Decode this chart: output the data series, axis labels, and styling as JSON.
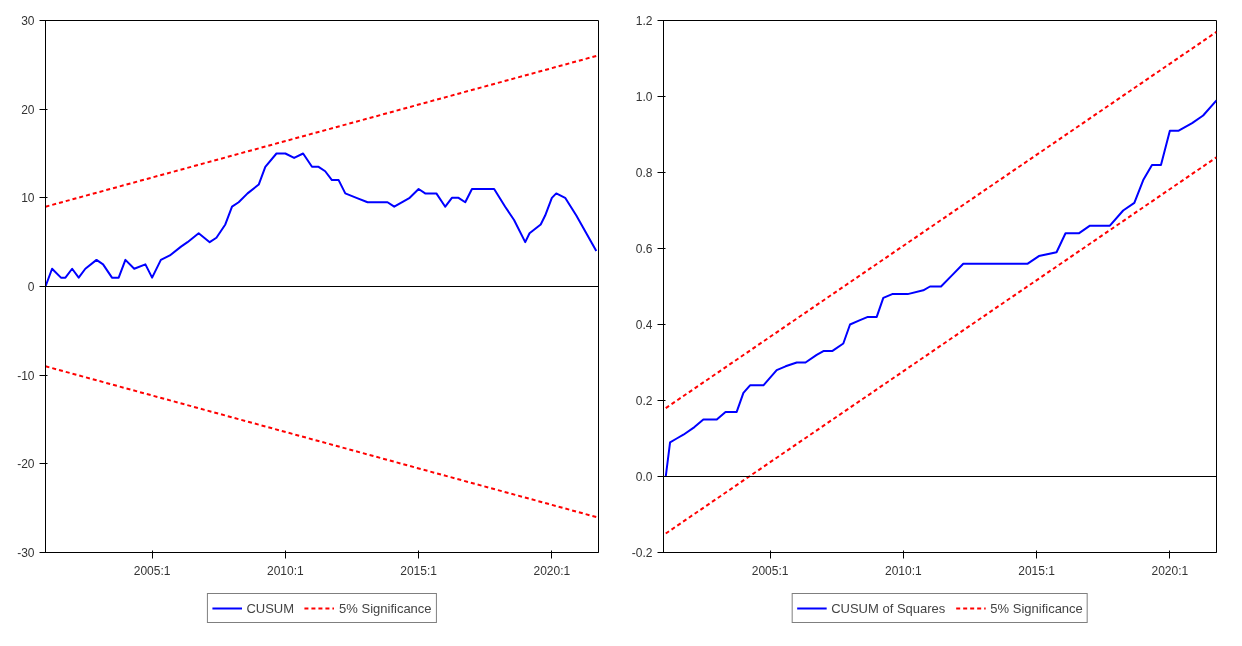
{
  "chart_data": [
    {
      "type": "line",
      "x": [
        "2001-01",
        "2001-04",
        "2001-08",
        "2001-10",
        "2002-01",
        "2002-04",
        "2002-07",
        "2002-12",
        "2003-03",
        "2003-07",
        "2003-10",
        "2004-01",
        "2004-05",
        "2004-10",
        "2005-01",
        "2005-05",
        "2005-09",
        "2006-02",
        "2006-05",
        "2006-10",
        "2007-03",
        "2007-06",
        "2007-10",
        "2008-01",
        "2008-04",
        "2008-08",
        "2009-01",
        "2009-04",
        "2009-09",
        "2010-01",
        "2010-05",
        "2010-09",
        "2011-01",
        "2011-04",
        "2011-07",
        "2011-10",
        "2012-01",
        "2012-04",
        "2012-09",
        "2013-02",
        "2013-11",
        "2014-02",
        "2014-09",
        "2015-01",
        "2015-04",
        "2015-09",
        "2016-01",
        "2016-04",
        "2016-07",
        "2016-10",
        "2017-01",
        "2017-08",
        "2017-11",
        "2018-04",
        "2018-08",
        "2019-01",
        "2019-03",
        "2019-08",
        "2019-10",
        "2020-01",
        "2020-03",
        "2020-07",
        "2020-12",
        "2021-09"
      ],
      "series": [
        {
          "name": "CUSUM",
          "color": "#0000ff",
          "line_style": "solid",
          "values": [
            0,
            2,
            1,
            1,
            2,
            1,
            2,
            3,
            2.5,
            1,
            1,
            3,
            2,
            2.5,
            1,
            3,
            3.5,
            4.5,
            5,
            6,
            5,
            5.5,
            7,
            9,
            9.5,
            10.5,
            11.5,
            13.5,
            15,
            15,
            14.5,
            15,
            13.5,
            13.5,
            13,
            12,
            12,
            10.5,
            10,
            9.5,
            9.5,
            9,
            10,
            11,
            10.5,
            10.5,
            9,
            10,
            10,
            9.5,
            11,
            11,
            11,
            9,
            7.5,
            5,
            6,
            7,
            8,
            10,
            10.5,
            10,
            8,
            4
          ]
        },
        {
          "name": "5% Significance",
          "color": "#ff0000",
          "line_style": "dashed",
          "x": [
            "2001-01",
            "2021-09"
          ],
          "values": [
            9,
            26
          ]
        },
        {
          "color": "#ff0000",
          "line_style": "dashed",
          "x": [
            "2001-01",
            "2021-09"
          ],
          "values": [
            -9,
            -26
          ]
        }
      ],
      "xlim": [
        "2001-01",
        "2021-10"
      ],
      "xticks": [
        {
          "value": "2005-01",
          "label": "2005:1"
        },
        {
          "value": "2010-01",
          "label": "2010:1"
        },
        {
          "value": "2015-01",
          "label": "2015:1"
        },
        {
          "value": "2020-01",
          "label": "2020:1"
        }
      ],
      "ylim": [
        -30,
        30
      ],
      "yticks": [
        -30,
        -20,
        -10,
        0,
        10,
        20,
        30
      ],
      "ref_lines": [
        {
          "axis": "y",
          "value": 0,
          "color": "#000000"
        }
      ],
      "grid": false,
      "legend": "bottom"
    },
    {
      "type": "line",
      "x": [
        "2001-02",
        "2001-04",
        "2001-07",
        "2001-10",
        "2002-03",
        "2002-07",
        "2003-01",
        "2003-05",
        "2003-10",
        "2004-01",
        "2004-04",
        "2004-10",
        "2005-04",
        "2005-08",
        "2006-01",
        "2006-05",
        "2006-10",
        "2007-01",
        "2007-05",
        "2007-10",
        "2008-01",
        "2008-05",
        "2008-09",
        "2009-01",
        "2009-04",
        "2009-08",
        "2010-03",
        "2010-10",
        "2011-01",
        "2011-06",
        "2011-11",
        "2012-04",
        "2012-12",
        "2013-02",
        "2014-09",
        "2015-02",
        "2015-10",
        "2016-02",
        "2016-08",
        "2017-01",
        "2017-10",
        "2018-04",
        "2018-09",
        "2019-01",
        "2019-05",
        "2019-09",
        "2020-01",
        "2020-05",
        "2020-11",
        "2021-04",
        "2021-10"
      ],
      "series": [
        {
          "name": "CUSUM of Squares",
          "color": "#0000ff",
          "line_style": "solid",
          "values": [
            0,
            0.09,
            0.1,
            0.11,
            0.13,
            0.15,
            0.15,
            0.17,
            0.17,
            0.22,
            0.24,
            0.24,
            0.28,
            0.29,
            0.3,
            0.3,
            0.32,
            0.33,
            0.33,
            0.35,
            0.4,
            0.41,
            0.42,
            0.42,
            0.47,
            0.48,
            0.48,
            0.49,
            0.5,
            0.5,
            0.53,
            0.56,
            0.56,
            0.56,
            0.56,
            0.58,
            0.59,
            0.64,
            0.64,
            0.66,
            0.66,
            0.7,
            0.72,
            0.78,
            0.82,
            0.82,
            0.91,
            0.91,
            0.93,
            0.95,
            0.99
          ]
        },
        {
          "name": "5% Significance",
          "color": "#ff0000",
          "line_style": "dashed",
          "x": [
            "2001-02",
            "2021-10"
          ],
          "values": [
            0.18,
            1.17
          ]
        },
        {
          "color": "#ff0000",
          "line_style": "dashed",
          "x": [
            "2001-02",
            "2021-10"
          ],
          "values": [
            -0.15,
            0.84
          ]
        }
      ],
      "xlim": [
        "2001-01",
        "2021-10"
      ],
      "xticks": [
        {
          "value": "2005-01",
          "label": "2005:1"
        },
        {
          "value": "2010-01",
          "label": "2010:1"
        },
        {
          "value": "2015-01",
          "label": "2015:1"
        },
        {
          "value": "2020-01",
          "label": "2020:1"
        }
      ],
      "ylim": [
        -0.2,
        1.2
      ],
      "yticks": [
        {
          "value": -0.2,
          "label": "-0.2"
        },
        {
          "value": 0.0,
          "label": "0.0"
        },
        {
          "value": 0.2,
          "label": "0.2"
        },
        {
          "value": 0.4,
          "label": "0.4"
        },
        {
          "value": 0.6,
          "label": "0.6"
        },
        {
          "value": 0.8,
          "label": "0.8"
        },
        {
          "value": 1.0,
          "label": "1.0"
        },
        {
          "value": 1.2,
          "label": "1.2"
        }
      ],
      "ref_lines": [
        {
          "axis": "y",
          "value": 0,
          "color": "#000000"
        }
      ],
      "grid": false,
      "legend": "bottom"
    }
  ]
}
